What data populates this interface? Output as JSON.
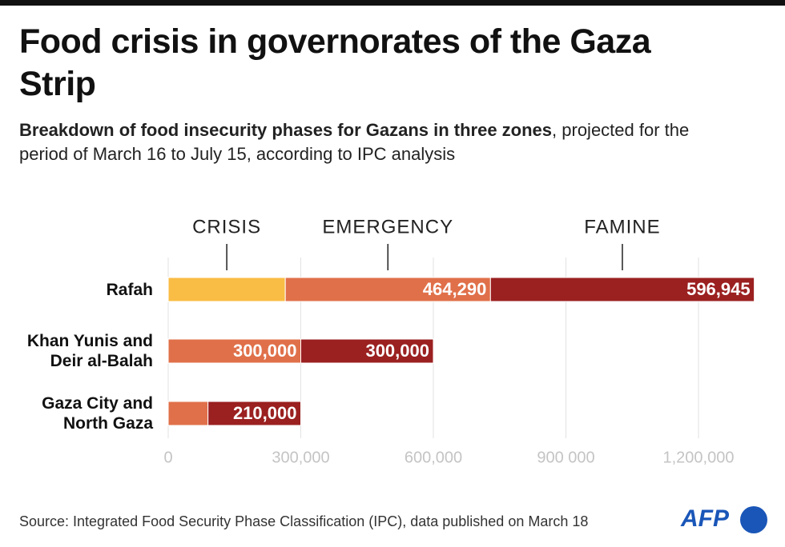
{
  "chart_data": {
    "type": "stacked-bar-horizontal",
    "title": "Food crisis in governorates of the Gaza Strip",
    "subtitle_bold": "Breakdown of food insecurity phases for Gazans in three zones",
    "subtitle": ", projected for the period of March 16 to July 15, according to IPC analysis",
    "source": "Source: Integrated Food Security Phase Classification (IPC), data published on March 18",
    "logo": "AFP",
    "categories": [
      "Rafah",
      "Khan Yunis and Deir al-Balah",
      "Gaza City and North Gaza"
    ],
    "series": [
      {
        "name": "CRISIS",
        "color": "#f9bd45",
        "values": [
          265000,
          null,
          null
        ]
      },
      {
        "name": "EMERGENCY",
        "color": "#e0704a",
        "values": [
          464290,
          300000,
          90000
        ],
        "value_labels": [
          "464,290",
          "300,000",
          null
        ]
      },
      {
        "name": "FAMINE",
        "color": "#9b2020",
        "values": [
          596945,
          300000,
          210000
        ],
        "value_labels": [
          "596,945",
          "300,000",
          "210,000"
        ]
      }
    ],
    "xlim": [
      0,
      1330000
    ],
    "xticks": [
      0,
      {
        "value": 300000,
        "label": "300,000"
      },
      {
        "value": 600000,
        "label": "600,000"
      },
      {
        "value": 900000,
        "label": "900 000"
      },
      {
        "value": 1200000,
        "label": "1,200,000"
      }
    ],
    "grid": true
  }
}
